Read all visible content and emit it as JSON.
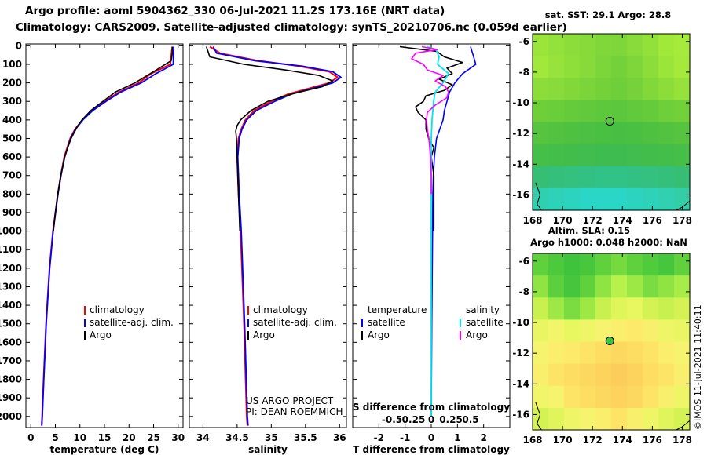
{
  "header": {
    "line1": "Argo profile: aoml 5904362_330 06-Jul-2021 11.2S 173.16E (NRT data)",
    "line2": "Climatology: CARS2009. Satellite-adjusted climatology: synTS_20210706.nc (0.059d earlier)"
  },
  "stamp": "©IMOS 11-Jul-2021 11:40:11",
  "colors": {
    "climatology": "#ff0000",
    "satellite": "#0000ff",
    "argo": "#000000",
    "sal_satellite": "#00e5ee",
    "sal_argo": "#ff00ff"
  },
  "pressure_ticks": [
    0,
    100,
    200,
    300,
    400,
    500,
    600,
    700,
    800,
    900,
    1000,
    1100,
    1200,
    1300,
    1400,
    1500,
    1600,
    1700,
    1800,
    1900,
    2000
  ],
  "chart_data": [
    {
      "type": "line",
      "panel": "temperature",
      "xlabel": "temperature (deg C)",
      "ylabel": "pressure",
      "xlim": [
        -1,
        31
      ],
      "ylim": [
        2060,
        -10
      ],
      "xticks": [
        0,
        5,
        10,
        15,
        20,
        25,
        30
      ],
      "legend": [
        "climatology",
        "satellite-adj. clim.",
        "Argo"
      ],
      "series": [
        {
          "name": "climatology",
          "y": [
            5,
            100,
            150,
            200,
            250,
            300,
            350,
            400,
            450,
            500,
            600,
            700,
            800,
            1000,
            1200,
            1500,
            1800,
            2000,
            2050
          ],
          "values": [
            28.8,
            28.4,
            24.5,
            22,
            18,
            15,
            12.5,
            10.5,
            9,
            8,
            6.8,
            6.1,
            5.5,
            4.5,
            3.8,
            3.1,
            2.6,
            2.3,
            2.2
          ]
        },
        {
          "name": "satellite-adj. clim.",
          "y": [
            5,
            100,
            150,
            200,
            250,
            300,
            350,
            400,
            450,
            500,
            600,
            700,
            800,
            1000,
            1200,
            1500,
            1800,
            2000,
            2050
          ],
          "values": [
            29.1,
            29.0,
            25.5,
            22.5,
            18.3,
            15.3,
            12.6,
            10.6,
            9.1,
            8.1,
            6.9,
            6.15,
            5.55,
            4.55,
            3.85,
            3.15,
            2.65,
            2.35,
            2.25
          ]
        },
        {
          "name": "Argo",
          "y": [
            5,
            40,
            80,
            120,
            160,
            200,
            250,
            300,
            350,
            400,
            430,
            460,
            500,
            550,
            600,
            700,
            800,
            900,
            1000
          ],
          "values": [
            28.8,
            28.8,
            28.6,
            26.2,
            23.7,
            21.2,
            17.2,
            14.7,
            12.2,
            10.4,
            9.6,
            9.0,
            8.2,
            7.5,
            6.9,
            6.1,
            5.5,
            5.0,
            4.6
          ]
        }
      ]
    },
    {
      "type": "line",
      "panel": "salinity",
      "xlabel": "salinity",
      "xlim": [
        33.8,
        36.1
      ],
      "ylim": [
        2060,
        -10
      ],
      "xticks": [
        34,
        34.5,
        35,
        35.5,
        36
      ],
      "xtick_labels": [
        "34",
        "34.5",
        "35",
        "35.5",
        "36"
      ],
      "legend": [
        "climatology",
        "satellite-adj. clim.",
        "Argo"
      ],
      "annotations": [
        "US ARGO PROJECT",
        "PI: DEAN ROEMMICH"
      ],
      "series": [
        {
          "name": "climatology",
          "y": [
            5,
            40,
            80,
            110,
            140,
            170,
            200,
            230,
            260,
            300,
            350,
            400,
            450,
            500,
            600,
            800,
            1000,
            1500,
            2000,
            2050
          ],
          "values": [
            34.1,
            34.25,
            34.8,
            35.4,
            35.85,
            35.97,
            35.85,
            35.55,
            35.25,
            35.0,
            34.75,
            34.62,
            34.56,
            34.52,
            34.5,
            34.52,
            34.55,
            34.6,
            34.64,
            34.65
          ]
        },
        {
          "name": "satellite-adj. clim.",
          "y": [
            5,
            40,
            80,
            110,
            140,
            170,
            200,
            230,
            260,
            300,
            350,
            400,
            450,
            500,
            600,
            800,
            1000,
            1500,
            2000,
            2050
          ],
          "values": [
            34.15,
            34.2,
            34.75,
            35.45,
            35.9,
            36.02,
            35.9,
            35.6,
            35.3,
            35.05,
            34.78,
            34.64,
            34.57,
            34.53,
            34.51,
            34.53,
            34.56,
            34.61,
            34.65,
            34.66
          ]
        },
        {
          "name": "Argo",
          "y": [
            5,
            60,
            100,
            130,
            160,
            190,
            220,
            260,
            300,
            350,
            400,
            430,
            460,
            500,
            600,
            800,
            1000
          ],
          "values": [
            34.05,
            34.1,
            34.6,
            35.2,
            35.7,
            35.9,
            35.75,
            35.3,
            34.95,
            34.7,
            34.55,
            34.5,
            34.48,
            34.49,
            34.5,
            34.52,
            34.54
          ]
        }
      ]
    },
    {
      "type": "line",
      "panel": "difference",
      "xlabel": "T difference from climatology",
      "top_label": "S difference from climatology",
      "xlim": [
        -3,
        3
      ],
      "ylim": [
        2060,
        -10
      ],
      "xticks": [
        -2,
        -1,
        0,
        1,
        2
      ],
      "top_ticks": [
        -0.5,
        -0.25,
        0,
        0.25,
        0.5
      ],
      "top_tick_labels": [
        "-0.5",
        "-0.25",
        "0",
        "0.25",
        "0.5"
      ],
      "legend_headers": [
        "temperature",
        "salinity"
      ],
      "legend_left": [
        "satellite",
        "Argo"
      ],
      "legend_right": [
        "satellite",
        "Argo"
      ],
      "series": [
        {
          "name": "temperature satellite",
          "y": [
            5,
            50,
            100,
            150,
            200,
            250,
            300,
            350,
            400,
            500,
            600,
            700,
            800,
            1000,
            1500,
            2000
          ],
          "values": [
            1.5,
            1.6,
            1.7,
            1.2,
            0.9,
            0.7,
            0.6,
            0.5,
            0.45,
            0.2,
            0.12,
            0.08,
            0.06,
            0.05,
            0.02,
            0.0
          ]
        },
        {
          "name": "temperature Argo",
          "y": [
            5,
            30,
            60,
            90,
            120,
            150,
            180,
            210,
            240,
            270,
            300,
            330,
            360,
            400,
            450,
            500,
            550,
            600,
            700,
            800,
            900,
            1000
          ],
          "values": [
            -1.2,
            0.2,
            0.5,
            1.2,
            0.6,
            0.8,
            0.3,
            0.8,
            0.5,
            -0.2,
            -0.3,
            -0.6,
            -0.5,
            -0.2,
            -0.2,
            -0.1,
            0.1,
            0.0,
            0.1,
            0.1,
            0.1,
            0.1
          ]
        },
        {
          "name": "salinity satellite",
          "y": [
            5,
            20,
            60,
            100,
            150,
            200,
            250,
            300,
            350,
            400,
            500,
            600,
            800,
            1000,
            1500,
            2000
          ],
          "values": [
            -0.06,
            0.06,
            0.1,
            0.08,
            0.22,
            0.15,
            0.05,
            0.03,
            0.02,
            0.01,
            0.0,
            0.0,
            0.0,
            0.0,
            0.0,
            0.0
          ]
        },
        {
          "name": "salinity Argo",
          "y": [
            5,
            20,
            40,
            70,
            100,
            130,
            160,
            190,
            220,
            250,
            280,
            320,
            360,
            400,
            450,
            500,
            550,
            600,
            700,
            800
          ],
          "values": [
            -0.12,
            0.08,
            -0.2,
            -0.25,
            -0.1,
            -0.05,
            0.15,
            0.05,
            0.18,
            0.22,
            0.2,
            0.05,
            -0.05,
            -0.06,
            -0.05,
            -0.03,
            -0.02,
            -0.01,
            0.0,
            0.0
          ]
        }
      ]
    },
    {
      "type": "heatmap",
      "panel": "sst-map",
      "title": "sat. SST: 29.1 Argo: 28.8",
      "xlim": [
        168,
        178.5
      ],
      "ylim": [
        -17,
        -5.5
      ],
      "xticks": [
        168,
        170,
        172,
        174,
        176,
        178
      ],
      "yticks": [
        -6,
        -8,
        -10,
        -12,
        -14,
        -16
      ],
      "profile_location": [
        173.16,
        -11.2
      ],
      "value_rows": [
        [
          "#9be53b",
          "#93e13b",
          "#8cdd3a",
          "#86da39",
          "#80d739",
          "#7fd63a",
          "#88db3a",
          "#92e03a",
          "#a0e83a",
          "#a6ea3b"
        ],
        [
          "#a0e83b",
          "#98e33b",
          "#8fdf3a",
          "#86da39",
          "#7cd53a",
          "#74d13a",
          "#7fd63a",
          "#8ddd3a",
          "#9be53b",
          "#a5ea3b"
        ],
        [
          "#8ddd3a",
          "#88db3a",
          "#82d839",
          "#7bd43a",
          "#74d13a",
          "#6ecf3a",
          "#76d13a",
          "#82d839",
          "#8ddd3a",
          "#96e23b"
        ],
        [
          "#6ecf3a",
          "#6acd3a",
          "#66cb3b",
          "#62c93c",
          "#5ec83d",
          "#5cc73d",
          "#60c93c",
          "#66cb3b",
          "#6ecf3a",
          "#72d03a"
        ],
        [
          "#56c43f",
          "#52c240",
          "#4ec141",
          "#4cc042",
          "#4ac043",
          "#48bf43",
          "#4ac043",
          "#4ec141",
          "#52c240",
          "#56c43f"
        ],
        [
          "#46bf48",
          "#44be4a",
          "#42bd4c",
          "#40bd4e",
          "#3ebc50",
          "#3ebc50",
          "#40bd4e",
          "#42bd4c",
          "#44be4a",
          "#46bf48"
        ],
        [
          "#36bf74",
          "#34c07a",
          "#34c07e",
          "#32c182",
          "#30c286",
          "#30c286",
          "#32c182",
          "#34c07e",
          "#34c07a",
          "#36bf74"
        ],
        [
          "#2fd0b0",
          "#2ed2b8",
          "#2cd4c0",
          "#2ad6c6",
          "#2ad6c6",
          "#2ad6c6",
          "#2cd4c0",
          "#2ed2b8",
          "#30d0b0",
          "#32cea8"
        ]
      ]
    },
    {
      "type": "heatmap",
      "panel": "sla-map",
      "title_line1": "Altim. SLA: 0.15",
      "title_line2": "Argo h1000: 0.048 h2000: NaN",
      "xlim": [
        168,
        178.5
      ],
      "ylim": [
        -17,
        -5.5
      ],
      "xticks": [
        168,
        170,
        172,
        174,
        176,
        178
      ],
      "yticks": [
        -6,
        -8,
        -10,
        -12,
        -14,
        -16
      ],
      "profile_location": [
        173.16,
        -11.2
      ],
      "value_rows": [
        [
          "#5fd13c",
          "#4dca3c",
          "#3fc33c",
          "#48c73c",
          "#5fd13c",
          "#74da3e",
          "#5fd13c",
          "#4fcb3c",
          "#45c63c",
          "#5fd13c"
        ],
        [
          "#8fe444",
          "#5bcf3c",
          "#46c63c",
          "#5fd13c",
          "#8fe444",
          "#b8f04c",
          "#9de845",
          "#7adc40",
          "#8fe444",
          "#a8ec47"
        ],
        [
          "#c8f04f",
          "#9de845",
          "#7adc40",
          "#9de845",
          "#c8f04f",
          "#dff55a",
          "#e8f660",
          "#d4f254",
          "#c8f04f",
          "#d4f254"
        ],
        [
          "#e9f562",
          "#f2f56a",
          "#e8f660",
          "#eef668",
          "#f6f36e",
          "#fbee6c",
          "#fdea6a",
          "#f8f06c",
          "#eef668",
          "#e9f562"
        ],
        [
          "#f6f36e",
          "#fbee6c",
          "#fdea6a",
          "#fde467",
          "#fdde63",
          "#fdd860",
          "#fddd62",
          "#fde467",
          "#fbee6c",
          "#f6f36e"
        ],
        [
          "#f8f06c",
          "#fde467",
          "#fdde63",
          "#fdd860",
          "#fdd25d",
          "#fccd5a",
          "#fdd25d",
          "#fddd62",
          "#fde467",
          "#f8f06c"
        ],
        [
          "#f0f56a",
          "#f6f36e",
          "#fde467",
          "#fddd62",
          "#fdd860",
          "#fdd25d",
          "#fdd860",
          "#fde467",
          "#f8f06c",
          "#eef668"
        ],
        [
          "#d4f254",
          "#e0f55c",
          "#eef668",
          "#f6f36e",
          "#fbee6c",
          "#fde467",
          "#f8f06c",
          "#eef668",
          "#e0f55c",
          "#d4f254"
        ]
      ]
    }
  ]
}
